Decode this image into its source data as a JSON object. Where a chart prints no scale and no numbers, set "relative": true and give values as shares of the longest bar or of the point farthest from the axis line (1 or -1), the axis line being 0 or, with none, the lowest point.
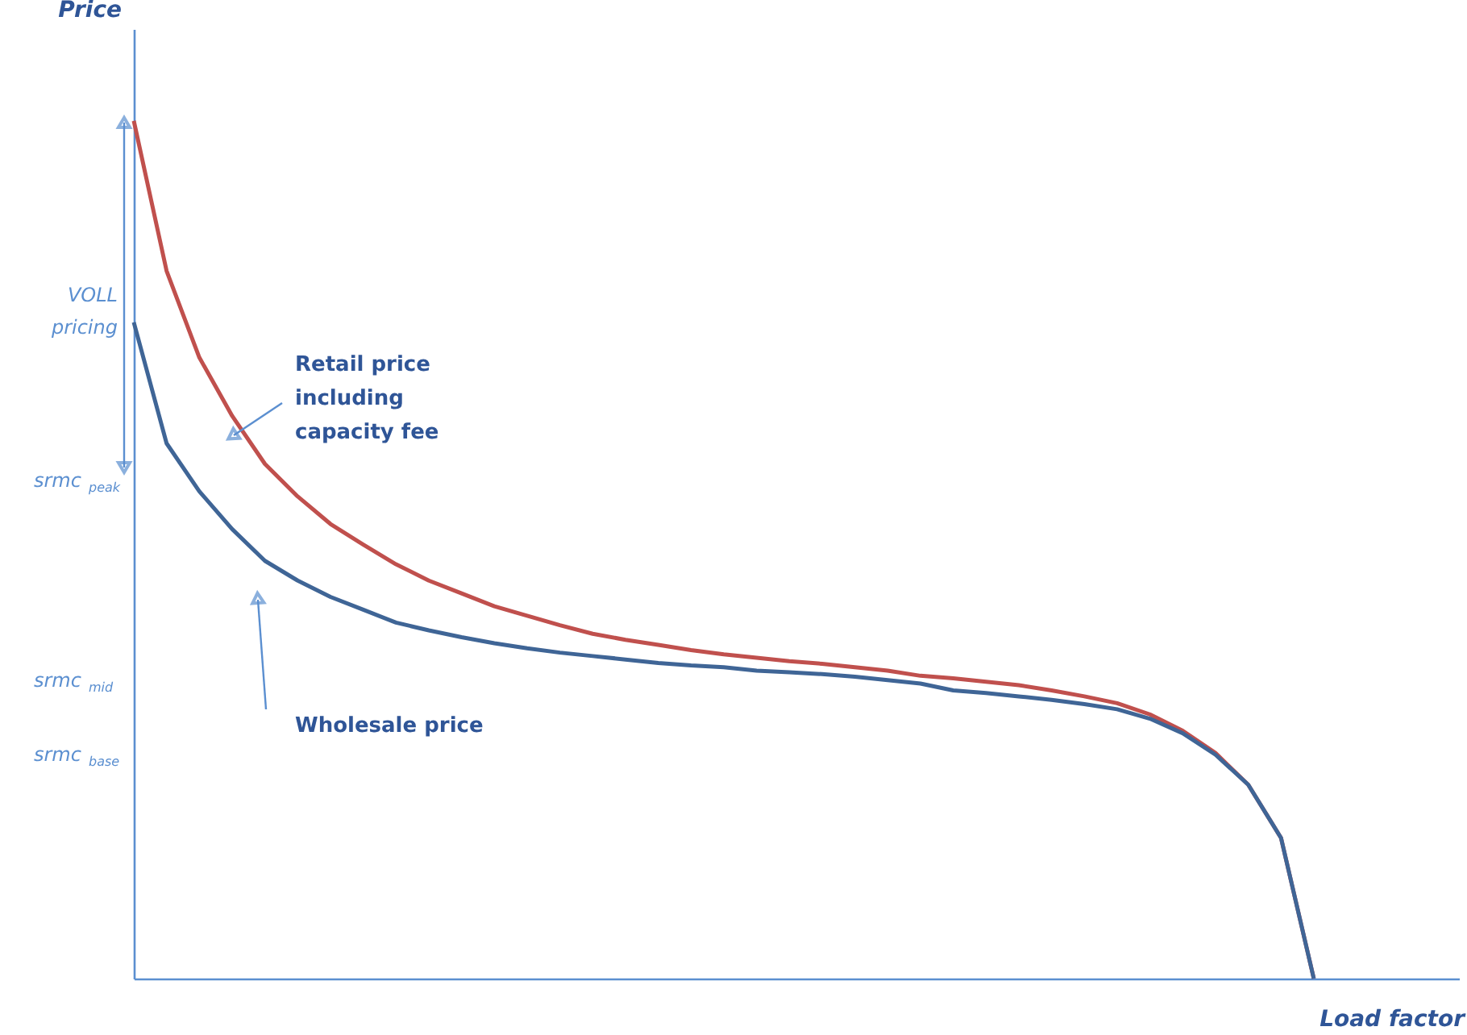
{
  "chart_data": {
    "type": "line",
    "relative": true,
    "ylabel": "Price",
    "xlabel": "Load factor",
    "categories": [
      null,
      null,
      null,
      null,
      null,
      null,
      null,
      null,
      null,
      null,
      null,
      null,
      null,
      null,
      null,
      null,
      null,
      null,
      null,
      null,
      null,
      null,
      null,
      null,
      null,
      null,
      null,
      null,
      null,
      null,
      null,
      null,
      null,
      null,
      null,
      null,
      null
    ],
    "series": [
      {
        "color": "#c0504d",
        "values": [
          1.0,
          0.825,
          0.724,
          0.656,
          0.6,
          0.562,
          0.53,
          0.506,
          0.483,
          0.464,
          0.449,
          0.434,
          0.423,
          0.412,
          0.402,
          0.395,
          0.389,
          0.383,
          0.378,
          0.374,
          0.37,
          0.367,
          0.363,
          0.359,
          0.353,
          0.35,
          0.346,
          0.342,
          0.336,
          0.329,
          0.321,
          0.308,
          0.289,
          0.263,
          0.226,
          0.164,
          0
        ]
      },
      {
        "color": "#3f6596",
        "values": [
          0.765,
          0.624,
          0.568,
          0.524,
          0.487,
          0.464,
          0.445,
          0.43,
          0.415,
          0.406,
          0.398,
          0.391,
          0.385,
          0.38,
          0.376,
          0.372,
          0.368,
          0.365,
          0.363,
          0.359,
          0.357,
          0.355,
          0.352,
          0.348,
          0.344,
          0.336,
          0.333,
          0.329,
          0.325,
          0.32,
          0.314,
          0.303,
          0.286,
          0.261,
          0.226,
          0.164,
          0
        ]
      }
    ],
    "annotations": [
      "VOLL pricing",
      "Retail price including capacity fee",
      "Wholesale price",
      "srmc$_{peak}$",
      "srmc$_{mid}$",
      "srmc$_{base}$"
    ],
    "tick_labels": false,
    "grid": false,
    "marker": "none",
    "line_style": "solid"
  }
}
